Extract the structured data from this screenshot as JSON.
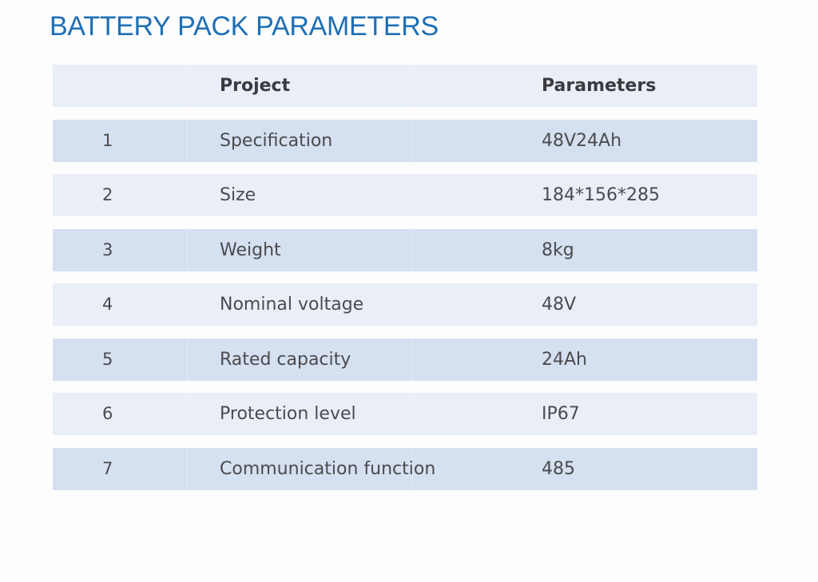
{
  "title": "BATTERY PACK PARAMETERS",
  "colors": {
    "title": "#1f6fb5",
    "row_dark": "#d5e0f0",
    "row_light": "#e9eef7",
    "text": "#4b4b4f"
  },
  "table": {
    "headers": {
      "no": "",
      "project": "Project",
      "parameters": "Parameters"
    },
    "rows": [
      {
        "no": "1",
        "project": "Specification",
        "parameter": "48V24Ah"
      },
      {
        "no": "2",
        "project": "Size",
        "parameter": "184*156*285"
      },
      {
        "no": "3",
        "project": "Weight",
        "parameter": "8kg"
      },
      {
        "no": "4",
        "project": "Nominal voltage",
        "parameter": "48V"
      },
      {
        "no": "5",
        "project": "Rated capacity",
        "parameter": "24Ah"
      },
      {
        "no": "6",
        "project": "Protection level",
        "parameter": "IP67"
      },
      {
        "no": "7",
        "project": "Communication function",
        "parameter": "485"
      }
    ]
  }
}
